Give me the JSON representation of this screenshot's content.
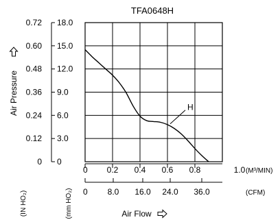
{
  "chart_data": {
    "type": "line",
    "title": "TFA0648H",
    "xlabel": "Air Flow",
    "ylabel": "Air Pressure",
    "xlim": [
      0,
      1.0
    ],
    "ylim": [
      0,
      18.0
    ],
    "grid": true,
    "x_ticks_m3": [
      "0",
      "0.2",
      "0.4",
      "0.6",
      "0.8",
      "1.0"
    ],
    "x_unit_m3": "(M³/MIN)",
    "x_ticks_cfm": [
      "0",
      "8.0",
      "16.0",
      "24.0",
      "36.0"
    ],
    "x_unit_cfm": "(CFM)",
    "y_ticks_mm": [
      "0",
      "3.0",
      "6.0",
      "9.0",
      "12.0",
      "15.0",
      "18.0"
    ],
    "y_unit_mm": "(mm HO₂)",
    "y_ticks_in": [
      "0",
      "0.12",
      "0.24",
      "0.36",
      "0.48",
      "0.60",
      "0.72"
    ],
    "y_unit_in": "(IN HO₂)",
    "series": [
      {
        "name": "H",
        "x": [
          0.0,
          0.05,
          0.1,
          0.15,
          0.2,
          0.25,
          0.3,
          0.35,
          0.4,
          0.45,
          0.5,
          0.55,
          0.6,
          0.65,
          0.7,
          0.75,
          0.8,
          0.85,
          0.9
        ],
        "y": [
          14.5,
          13.6,
          12.8,
          12.0,
          11.2,
          10.2,
          8.9,
          7.2,
          5.9,
          5.3,
          5.2,
          5.1,
          4.8,
          4.3,
          3.6,
          2.7,
          1.7,
          0.8,
          0.0
        ]
      }
    ]
  },
  "arrow_icons": [
    "arrow-up-outline",
    "arrow-right-outline"
  ]
}
